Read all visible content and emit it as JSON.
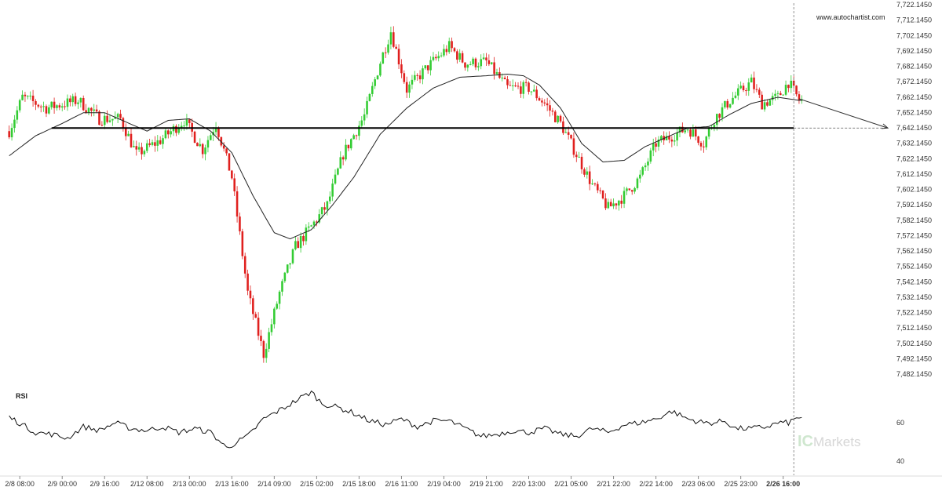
{
  "chart_data": {
    "type": "candlestick",
    "source_label": "www.autochartist.com",
    "brand": {
      "prefix": "IC",
      "suffix": "Markets"
    },
    "y_axis": {
      "min": 7482.145,
      "max": 7722.145,
      "ticks": [
        "7,722.1450",
        "7,712.1450",
        "7,702.1450",
        "7,692.1450",
        "7,682.1450",
        "7,672.1450",
        "7,662.1450",
        "7,652.1450",
        "7,642.1450",
        "7,632.1450",
        "7,622.1450",
        "7,612.1450",
        "7,602.1450",
        "7,592.1450",
        "7,582.1450",
        "7,572.1450",
        "7,562.1450",
        "7,552.1450",
        "7,542.1450",
        "7,532.1450",
        "7,522.1450",
        "7,512.1450",
        "7,502.1450",
        "7,492.1450",
        "7,482.1450"
      ],
      "tick_values": [
        7722.145,
        7712.145,
        7702.145,
        7692.145,
        7682.145,
        7672.145,
        7662.145,
        7652.145,
        7642.145,
        7632.145,
        7622.145,
        7612.145,
        7602.145,
        7592.145,
        7582.145,
        7572.145,
        7562.145,
        7552.145,
        7542.145,
        7532.145,
        7522.145,
        7512.145,
        7502.145,
        7492.145,
        7482.145
      ]
    },
    "x_axis": {
      "labels": [
        "2/8 08:00",
        "2/9 00:00",
        "2/9 16:00",
        "2/12 08:00",
        "2/13 00:00",
        "2/13 16:00",
        "2/14 09:00",
        "2/15 02:00",
        "2/15 18:00",
        "2/16 11:00",
        "2/19 04:00",
        "2/19 21:00",
        "2/20 13:00",
        "2/21 05:00",
        "2/21 22:00",
        "2/22 14:00",
        "2/23 06:00",
        "2/25 23:00",
        "2/26 16:00"
      ],
      "label_index": [
        4,
        20,
        36,
        52,
        68,
        84,
        100,
        116,
        132,
        148,
        164,
        180,
        196,
        212,
        228,
        244,
        260,
        276,
        292
      ],
      "highlight": "2/26 16:00"
    },
    "bars": 300,
    "last_bar_index": 296,
    "price_path": [
      [
        0,
        7640
      ],
      [
        5,
        7662
      ],
      [
        14,
        7655
      ],
      [
        26,
        7660
      ],
      [
        34,
        7648
      ],
      [
        42,
        7648
      ],
      [
        48,
        7625
      ],
      [
        57,
        7634
      ],
      [
        66,
        7647
      ],
      [
        73,
        7628
      ],
      [
        78,
        7645
      ],
      [
        84,
        7610
      ],
      [
        90,
        7535
      ],
      [
        96,
        7495
      ],
      [
        102,
        7535
      ],
      [
        108,
        7565
      ],
      [
        114,
        7578
      ],
      [
        120,
        7592
      ],
      [
        126,
        7625
      ],
      [
        134,
        7650
      ],
      [
        140,
        7685
      ],
      [
        144,
        7705
      ],
      [
        150,
        7667
      ],
      [
        158,
        7682
      ],
      [
        166,
        7695
      ],
      [
        172,
        7684
      ],
      [
        180,
        7685
      ],
      [
        188,
        7668
      ],
      [
        196,
        7668
      ],
      [
        202,
        7658
      ],
      [
        208,
        7645
      ],
      [
        214,
        7625
      ],
      [
        220,
        7605
      ],
      [
        226,
        7590
      ],
      [
        232,
        7598
      ],
      [
        238,
        7610
      ],
      [
        244,
        7632
      ],
      [
        250,
        7637
      ],
      [
        256,
        7642
      ],
      [
        262,
        7632
      ],
      [
        266,
        7648
      ],
      [
        272,
        7660
      ],
      [
        280,
        7672
      ],
      [
        284,
        7658
      ],
      [
        290,
        7662
      ],
      [
        294,
        7672
      ],
      [
        298,
        7660
      ]
    ],
    "moving_average": [
      [
        0,
        7624
      ],
      [
        10,
        7637
      ],
      [
        20,
        7645
      ],
      [
        28,
        7652
      ],
      [
        36,
        7652
      ],
      [
        44,
        7646
      ],
      [
        52,
        7640
      ],
      [
        60,
        7647
      ],
      [
        68,
        7648
      ],
      [
        76,
        7640
      ],
      [
        84,
        7626
      ],
      [
        92,
        7598
      ],
      [
        100,
        7574
      ],
      [
        106,
        7570
      ],
      [
        114,
        7576
      ],
      [
        122,
        7592
      ],
      [
        130,
        7610
      ],
      [
        140,
        7638
      ],
      [
        150,
        7655
      ],
      [
        160,
        7668
      ],
      [
        170,
        7675
      ],
      [
        180,
        7676
      ],
      [
        188,
        7677
      ],
      [
        194,
        7676
      ],
      [
        200,
        7670
      ],
      [
        208,
        7655
      ],
      [
        216,
        7632
      ],
      [
        224,
        7620
      ],
      [
        232,
        7621
      ],
      [
        240,
        7630
      ],
      [
        248,
        7636
      ],
      [
        256,
        7642
      ],
      [
        264,
        7643
      ],
      [
        272,
        7651
      ],
      [
        280,
        7658
      ],
      [
        290,
        7662
      ],
      [
        298,
        7660
      ]
    ],
    "support_level": {
      "value": 7642.0,
      "start_index": 16
    },
    "forecast": {
      "from_index": 298,
      "from_value": 7661,
      "to_index": 340,
      "to_value": 7642
    },
    "rsi": {
      "title": "RSI",
      "ticks": [
        "60",
        "40"
      ],
      "tick_values": [
        60,
        40
      ],
      "min": 36,
      "max": 80,
      "values": [
        [
          0,
          63
        ],
        [
          10,
          55
        ],
        [
          16,
          54
        ],
        [
          22,
          52
        ],
        [
          28,
          58
        ],
        [
          34,
          56
        ],
        [
          40,
          60
        ],
        [
          46,
          57
        ],
        [
          52,
          56
        ],
        [
          58,
          58
        ],
        [
          64,
          55
        ],
        [
          70,
          57
        ],
        [
          76,
          55
        ],
        [
          82,
          47
        ],
        [
          86,
          50
        ],
        [
          90,
          53
        ],
        [
          96,
          62
        ],
        [
          104,
          68
        ],
        [
          110,
          73
        ],
        [
          114,
          76
        ],
        [
          118,
          70
        ],
        [
          124,
          68
        ],
        [
          130,
          65
        ],
        [
          136,
          61
        ],
        [
          142,
          59
        ],
        [
          148,
          62
        ],
        [
          154,
          58
        ],
        [
          160,
          61
        ],
        [
          166,
          61
        ],
        [
          172,
          57
        ],
        [
          178,
          53
        ],
        [
          184,
          54
        ],
        [
          190,
          56
        ],
        [
          196,
          55
        ],
        [
          202,
          57
        ],
        [
          208,
          54
        ],
        [
          214,
          53
        ],
        [
          220,
          57
        ],
        [
          226,
          55
        ],
        [
          232,
          59
        ],
        [
          238,
          60
        ],
        [
          244,
          62
        ],
        [
          250,
          66
        ],
        [
          256,
          62
        ],
        [
          262,
          60
        ],
        [
          266,
          60
        ],
        [
          270,
          61
        ],
        [
          274,
          57
        ],
        [
          280,
          57
        ],
        [
          286,
          58
        ],
        [
          290,
          60
        ],
        [
          294,
          60
        ],
        [
          298,
          63
        ]
      ]
    }
  }
}
